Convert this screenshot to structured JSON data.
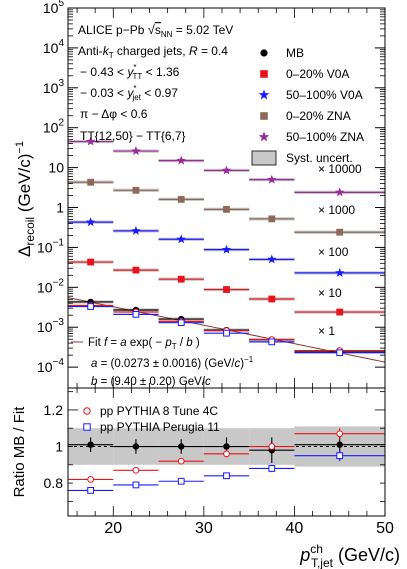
{
  "chart_data": [
    {
      "type": "scatter",
      "panel": "upper",
      "ylabel_main": "Δ",
      "ylabel_sub": "recoil",
      "ylabel_unit": "(GeV/c)",
      "ylabel_unit_sup": "−1",
      "yscale": "log",
      "ylim": [
        3e-05,
        100000
      ],
      "xlim": [
        15,
        50
      ],
      "y_ticks": [
        {
          "v": 0.0001,
          "b": "10",
          "e": "−4"
        },
        {
          "v": 0.001,
          "b": "10",
          "e": "−3"
        },
        {
          "v": 0.01,
          "b": "10",
          "e": "−2"
        },
        {
          "v": 0.1,
          "b": "10",
          "e": "−1"
        },
        {
          "v": 1,
          "b": "1",
          "e": ""
        },
        {
          "v": 10,
          "b": "10",
          "e": ""
        },
        {
          "v": 100,
          "b": "10",
          "e": "2"
        },
        {
          "v": 1000,
          "b": "10",
          "e": "3"
        },
        {
          "v": 10000,
          "b": "10",
          "e": "4"
        },
        {
          "v": 100000,
          "b": "10",
          "e": "5"
        }
      ],
      "annotations": [
        "ALICE p−Pb  √s_NN = 5.02 TeV",
        "Anti-k_T charged jets, R = 0.4",
        "− 0.43 < y*_TT < 1.36",
        "− 0.03 < y*_jet < 0.97",
        "π − Δφ < 0.6",
        "TT{12,50} − TT{6,7}"
      ],
      "scale_labels": [
        "× 10000",
        "× 1000",
        "× 100",
        "× 10",
        "× 1"
      ],
      "fit_lines": [
        "Fit f = a exp( − p_T / b )",
        "a = (0.0273 ± 0.0016) (GeV/c)⁻¹",
        "b = (9.40 ± 0.20) GeV/c"
      ],
      "fit": {
        "a": 0.0273,
        "b": 9.4,
        "color": "#8b3a2a"
      },
      "bins": [
        [
          15,
          20
        ],
        [
          20,
          25
        ],
        [
          25,
          30
        ],
        [
          30,
          35
        ],
        [
          35,
          40
        ],
        [
          40,
          50
        ]
      ],
      "legend": [
        {
          "name": "MB",
          "marker": "circle",
          "color": "#000000"
        },
        {
          "name": "0–20% V0A",
          "marker": "square",
          "color": "#e8141c"
        },
        {
          "name": "50–100% V0A",
          "marker": "star",
          "color": "#1a1aff"
        },
        {
          "name": "0–20% ZNA",
          "marker": "square",
          "color": "#8b6a5a"
        },
        {
          "name": "50–100% ZNA",
          "marker": "star",
          "color": "#9b2a9b"
        },
        {
          "name": "Syst. uncert.",
          "marker": "box",
          "color": "#c8c8c8"
        }
      ],
      "series": [
        {
          "name": "MB",
          "marker": "circle",
          "color": "#000000",
          "x": [
            17.5,
            22.5,
            27.5,
            32.5,
            37.5,
            45
          ],
          "y": [
            0.0043,
            0.0027,
            0.0016,
            0.00085,
            0.00049,
            0.00024
          ]
        },
        {
          "name": "0–20% V0A",
          "marker": "square",
          "color": "#e8141c",
          "x": [
            17.5,
            22.5,
            27.5,
            32.5,
            37.5,
            45
          ],
          "y": [
            0.043,
            0.027,
            0.016,
            0.0088,
            0.0051,
            0.0024
          ]
        },
        {
          "name": "50–100% V0A",
          "marker": "star",
          "color": "#1a1aff",
          "x": [
            17.5,
            22.5,
            27.5,
            32.5,
            37.5,
            45
          ],
          "y": [
            0.43,
            0.26,
            0.16,
            0.088,
            0.05,
            0.023
          ]
        },
        {
          "name": "0–20% ZNA",
          "marker": "square",
          "color": "#8b6a5a",
          "x": [
            17.5,
            22.5,
            27.5,
            32.5,
            37.5,
            45
          ],
          "y": [
            4.3,
            2.7,
            1.6,
            0.9,
            0.52,
            0.24
          ]
        },
        {
          "name": "50–100% ZNA",
          "marker": "star",
          "color": "#9b2a9b",
          "x": [
            17.5,
            22.5,
            27.5,
            32.5,
            37.5,
            45
          ],
          "y": [
            45,
            26,
            15,
            8.5,
            5.0,
            2.4
          ]
        },
        {
          "name": "pp PYTHIA 8 Tune 4C",
          "marker": "open-circle",
          "color": "#e8141c",
          "x": [
            17.5,
            22.5,
            27.5,
            32.5,
            37.5,
            45
          ],
          "y": [
            0.0035,
            0.0024,
            0.0014,
            0.00082,
            0.00049,
            0.00026
          ]
        },
        {
          "name": "pp PYTHIA Perugia 11",
          "marker": "open-square",
          "color": "#1a1aff",
          "x": [
            17.5,
            22.5,
            27.5,
            32.5,
            37.5,
            45
          ],
          "y": [
            0.0033,
            0.0021,
            0.0013,
            0.00071,
            0.00043,
            0.00023
          ]
        }
      ]
    },
    {
      "type": "scatter",
      "panel": "lower",
      "ylabel": "Ratio MB / Fit",
      "xlabel_main": "p",
      "xlabel_sup": "ch",
      "xlabel_sub": "T,jet",
      "xlabel_unit": "(GeV/c)",
      "xlim": [
        15,
        50
      ],
      "ylim": [
        0.62,
        1.32
      ],
      "y_ticks": [
        0.8,
        1,
        1.2
      ],
      "y_tick_labels": [
        "0.8",
        "1",
        "1.2"
      ],
      "x_ticks": [
        20,
        30,
        40,
        50
      ],
      "x_tick_labels": [
        "20",
        "30",
        "40",
        "50"
      ],
      "bins": [
        [
          15,
          20
        ],
        [
          20,
          25
        ],
        [
          25,
          30
        ],
        [
          30,
          35
        ],
        [
          35,
          40
        ],
        [
          40,
          50
        ]
      ],
      "legend": [
        {
          "name": "pp PYTHIA 8 Tune 4C",
          "marker": "open-circle",
          "color": "#e8141c"
        },
        {
          "name": "pp PYTHIA Perugia 11",
          "marker": "open-square",
          "color": "#1a1aff"
        }
      ],
      "series": [
        {
          "name": "MB",
          "marker": "circle",
          "color": "#000000",
          "x": [
            17.5,
            22.5,
            27.5,
            32.5,
            37.5,
            45
          ],
          "y": [
            1.01,
            1.0,
            1.0,
            1.0,
            0.98,
            1.01
          ],
          "err": [
            0.04,
            0.04,
            0.04,
            0.05,
            0.07,
            0.05
          ],
          "syst": [
            0.1,
            0.1,
            0.1,
            0.1,
            0.1,
            0.11
          ]
        },
        {
          "name": "pp PYTHIA 8 Tune 4C",
          "marker": "open-circle",
          "color": "#e8141c",
          "x": [
            17.5,
            22.5,
            27.5,
            32.5,
            37.5,
            45
          ],
          "y": [
            0.82,
            0.87,
            0.92,
            0.96,
            1.0,
            1.07
          ],
          "err": [
            0.01,
            0.01,
            0.01,
            0.02,
            0.02,
            0.03
          ]
        },
        {
          "name": "pp PYTHIA Perugia 11",
          "marker": "open-square",
          "color": "#1a1aff",
          "x": [
            17.5,
            22.5,
            27.5,
            32.5,
            37.5,
            45
          ],
          "y": [
            0.76,
            0.79,
            0.81,
            0.84,
            0.88,
            0.95
          ],
          "err": [
            0.01,
            0.01,
            0.01,
            0.01,
            0.02,
            0.03
          ]
        }
      ]
    }
  ]
}
